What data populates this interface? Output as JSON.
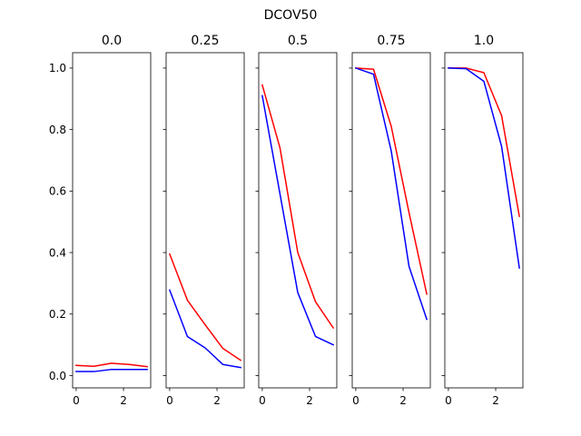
{
  "figure": {
    "suptitle": "DCOV50"
  },
  "chart_data": {
    "type": "line",
    "title": "DCOV50",
    "shared_y": true,
    "ylim": [
      -0.04,
      1.05
    ],
    "yticks": [
      0.0,
      0.2,
      0.4,
      0.6,
      0.8,
      1.0
    ],
    "ytick_labels": [
      "0.0",
      "0.2",
      "0.4",
      "0.6",
      "0.8",
      "1.0"
    ],
    "xlim": [
      -0.15,
      3.15
    ],
    "xticks": [
      0,
      2
    ],
    "xtick_labels": [
      "0",
      "2"
    ],
    "colors": {
      "series_1": "#ff0000",
      "series_2": "#0000ff"
    },
    "panels": [
      {
        "title": "0.0",
        "x": [
          0,
          0.75,
          1.5,
          2.25,
          3
        ],
        "series": [
          {
            "color": "#ff0000",
            "values": [
              0.033,
              0.03,
              0.04,
              0.036,
              0.029
            ]
          },
          {
            "color": "#0000ff",
            "values": [
              0.013,
              0.013,
              0.02,
              0.02,
              0.02
            ]
          }
        ]
      },
      {
        "title": "0.25",
        "x": [
          0,
          0.75,
          1.5,
          2.25,
          3
        ],
        "series": [
          {
            "color": "#ff0000",
            "values": [
              0.395,
              0.245,
              0.165,
              0.088,
              0.05
            ]
          },
          {
            "color": "#0000ff",
            "values": [
              0.278,
              0.127,
              0.09,
              0.036,
              0.026
            ]
          }
        ]
      },
      {
        "title": "0.5",
        "x": [
          0,
          0.75,
          1.5,
          2.25,
          3
        ],
        "series": [
          {
            "color": "#ff0000",
            "values": [
              0.945,
              0.74,
              0.4,
              0.24,
              0.155
            ]
          },
          {
            "color": "#0000ff",
            "values": [
              0.91,
              0.59,
              0.27,
              0.127,
              0.1
            ]
          }
        ]
      },
      {
        "title": "0.75",
        "x": [
          0,
          0.75,
          1.5,
          2.25,
          3
        ],
        "series": [
          {
            "color": "#ff0000",
            "values": [
              1.0,
              0.996,
              0.81,
              0.53,
              0.265
            ]
          },
          {
            "color": "#0000ff",
            "values": [
              1.0,
              0.98,
              0.73,
              0.355,
              0.183
            ]
          }
        ]
      },
      {
        "title": "1.0",
        "x": [
          0,
          0.75,
          1.5,
          2.25,
          3
        ],
        "series": [
          {
            "color": "#ff0000",
            "values": [
              1.0,
              1.0,
              0.985,
              0.845,
              0.518
            ]
          },
          {
            "color": "#0000ff",
            "values": [
              1.0,
              0.998,
              0.957,
              0.745,
              0.35
            ]
          }
        ]
      }
    ]
  }
}
